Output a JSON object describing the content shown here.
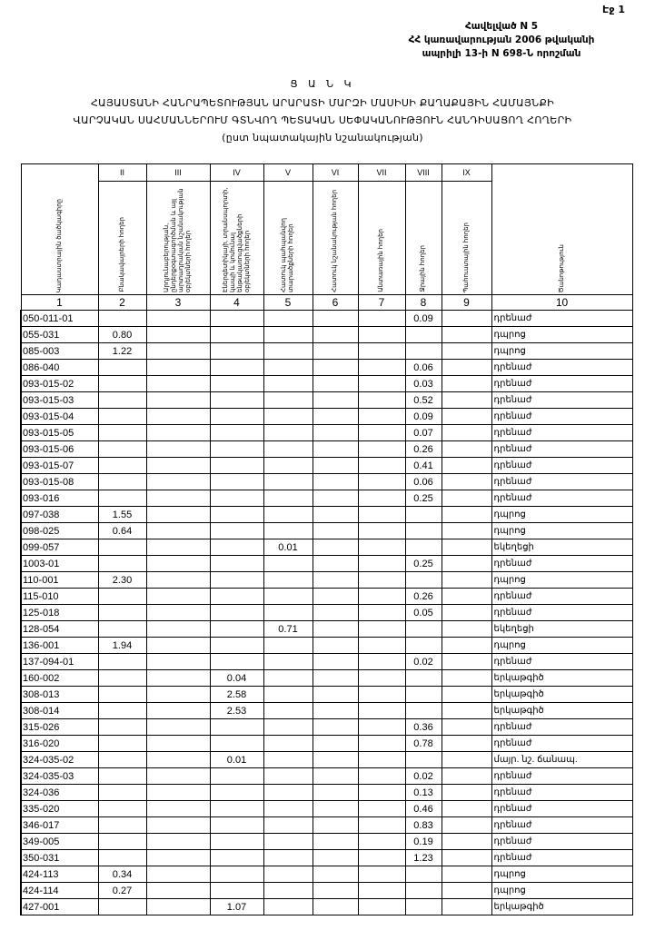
{
  "page_label": "Էջ 1",
  "annex": [
    "Հավելված N 5",
    "ՀՀ կառավարության 2006 թվականի",
    "ապրիլի 13-ի N 698-Ն որոշման"
  ],
  "title": "Ց Ա Ն Կ",
  "subtitle": [
    "ՀԱՅԱՍՏԱՆԻ ՀԱՆՐԱՊԵՏՈՒԹՅԱՆ ԱՐԱՐԱՏԻ ՄԱՐԶԻ ՄԱՍԻՍԻ ՔԱՂԱՔԱՅԻՆ ՀԱՄԱՅՆՔԻ",
    "ՎԱՐՉԱԿԱՆ ՍԱՀՄԱՆՆԵՐՈՒՄ ԳՏՆՎՈՂ ՊԵՏԱԿԱՆ ՍԵՓԱԿԱՆՈՒԹՅՈՒՆ ՀԱՆԴԻՍԱՑՈՂ ՀՈՂԵՐԻ",
    "(ըստ նպատակային նշանակության)"
  ],
  "table": {
    "roman": [
      "",
      "II",
      "III",
      "IV",
      "V",
      "VI",
      "VII",
      "VIII",
      "IX",
      ""
    ],
    "headers": [
      "Կադաստրային ծածկագիրը",
      "Բնակավայրերի հողեր",
      "Արդյունաբերության, ընդերքօգտագործման և այլ արտադրական նշանակության օբյեկտների հողեր",
      "Էներգետիկայի, տրանսպորտի, կապի և կոմունալ ենթակառուցվածքների օբյեկտների հողեր",
      "Հատուկ պահպանվող տարածքների հողեր",
      "Հատուկ նշանակության հողեր",
      "Անտառային հողեր",
      "Ջրային հողեր",
      "Պահուստային հողեր",
      "Ծանոթություն"
    ],
    "numbers": [
      "1",
      "2",
      "3",
      "4",
      "5",
      "6",
      "7",
      "8",
      "9",
      "10"
    ],
    "rows": [
      [
        "050-011-01",
        "",
        "",
        "",
        "",
        "",
        "",
        "0.09",
        "",
        "դրենաժ"
      ],
      [
        "055-031",
        "0.80",
        "",
        "",
        "",
        "",
        "",
        "",
        "",
        "դպրոց"
      ],
      [
        "085-003",
        "1.22",
        "",
        "",
        "",
        "",
        "",
        "",
        "",
        "դպրոց"
      ],
      [
        "086-040",
        "",
        "",
        "",
        "",
        "",
        "",
        "0.06",
        "",
        "դրենաժ"
      ],
      [
        "093-015-02",
        "",
        "",
        "",
        "",
        "",
        "",
        "0.03",
        "",
        "դրենաժ"
      ],
      [
        "093-015-03",
        "",
        "",
        "",
        "",
        "",
        "",
        "0.52",
        "",
        "դրենաժ"
      ],
      [
        "093-015-04",
        "",
        "",
        "",
        "",
        "",
        "",
        "0.09",
        "",
        "դրենաժ"
      ],
      [
        "093-015-05",
        "",
        "",
        "",
        "",
        "",
        "",
        "0.07",
        "",
        "դրենաժ"
      ],
      [
        "093-015-06",
        "",
        "",
        "",
        "",
        "",
        "",
        "0.26",
        "",
        "դրենաժ"
      ],
      [
        "093-015-07",
        "",
        "",
        "",
        "",
        "",
        "",
        "0.41",
        "",
        "դրենաժ"
      ],
      [
        "093-015-08",
        "",
        "",
        "",
        "",
        "",
        "",
        "0.06",
        "",
        "դրենաժ"
      ],
      [
        "093-016",
        "",
        "",
        "",
        "",
        "",
        "",
        "0.25",
        "",
        "դրենաժ"
      ],
      [
        "097-038",
        "1.55",
        "",
        "",
        "",
        "",
        "",
        "",
        "",
        "դպրոց"
      ],
      [
        "098-025",
        "0.64",
        "",
        "",
        "",
        "",
        "",
        "",
        "",
        "դպրոց"
      ],
      [
        "099-057",
        "",
        "",
        "",
        "0.01",
        "",
        "",
        "",
        "",
        "եկեղեցի"
      ],
      [
        "1003-01",
        "",
        "",
        "",
        "",
        "",
        "",
        "0.25",
        "",
        "դրենաժ"
      ],
      [
        "110-001",
        "2.30",
        "",
        "",
        "",
        "",
        "",
        "",
        "",
        "դպրոց"
      ],
      [
        "115-010",
        "",
        "",
        "",
        "",
        "",
        "",
        "0.26",
        "",
        "դրենաժ"
      ],
      [
        "125-018",
        "",
        "",
        "",
        "",
        "",
        "",
        "0.05",
        "",
        "դրենաժ"
      ],
      [
        "128-054",
        "",
        "",
        "",
        "0.71",
        "",
        "",
        "",
        "",
        "եկեղեցի"
      ],
      [
        "136-001",
        "1.94",
        "",
        "",
        "",
        "",
        "",
        "",
        "",
        "դպրոց"
      ],
      [
        "137-094-01",
        "",
        "",
        "",
        "",
        "",
        "",
        "0.02",
        "",
        "դրենաժ"
      ],
      [
        "160-002",
        "",
        "",
        "0.04",
        "",
        "",
        "",
        "",
        "",
        "երկաթգիծ"
      ],
      [
        "308-013",
        "",
        "",
        "2.58",
        "",
        "",
        "",
        "",
        "",
        "երկաթգիծ"
      ],
      [
        "308-014",
        "",
        "",
        "2.53",
        "",
        "",
        "",
        "",
        "",
        "երկաթգիծ"
      ],
      [
        "315-026",
        "",
        "",
        "",
        "",
        "",
        "",
        "0.36",
        "",
        "դրենաժ"
      ],
      [
        "316-020",
        "",
        "",
        "",
        "",
        "",
        "",
        "0.78",
        "",
        "դրենաժ"
      ],
      [
        "324-035-02",
        "",
        "",
        "0.01",
        "",
        "",
        "",
        "",
        "",
        "մայր. նշ. ճանապ."
      ],
      [
        "324-035-03",
        "",
        "",
        "",
        "",
        "",
        "",
        "0.02",
        "",
        "դրենաժ"
      ],
      [
        "324-036",
        "",
        "",
        "",
        "",
        "",
        "",
        "0.13",
        "",
        "դրենաժ"
      ],
      [
        "335-020",
        "",
        "",
        "",
        "",
        "",
        "",
        "0.46",
        "",
        "դրենաժ"
      ],
      [
        "346-017",
        "",
        "",
        "",
        "",
        "",
        "",
        "0.83",
        "",
        "դրենաժ"
      ],
      [
        "349-005",
        "",
        "",
        "",
        "",
        "",
        "",
        "0.19",
        "",
        "դրենաժ"
      ],
      [
        "350-031",
        "",
        "",
        "",
        "",
        "",
        "",
        "1.23",
        "",
        "դրենաժ"
      ],
      [
        "424-113",
        "0.34",
        "",
        "",
        "",
        "",
        "",
        "",
        "",
        "դպրոց"
      ],
      [
        "424-114",
        "0.27",
        "",
        "",
        "",
        "",
        "",
        "",
        "",
        "դպրոց"
      ],
      [
        "427-001",
        "",
        "",
        "1.07",
        "",
        "",
        "",
        "",
        "",
        "երկաթգիծ"
      ]
    ]
  }
}
